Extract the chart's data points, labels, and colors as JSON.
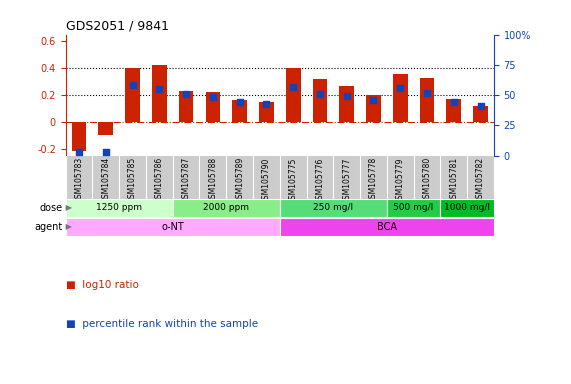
{
  "title": "GDS2051 / 9841",
  "samples": [
    "GSM105783",
    "GSM105784",
    "GSM105785",
    "GSM105786",
    "GSM105787",
    "GSM105788",
    "GSM105789",
    "GSM105790",
    "GSM105775",
    "GSM105776",
    "GSM105777",
    "GSM105778",
    "GSM105779",
    "GSM105780",
    "GSM105781",
    "GSM105782"
  ],
  "log10_ratio": [
    -0.22,
    -0.1,
    0.4,
    0.42,
    0.23,
    0.22,
    0.16,
    0.15,
    0.4,
    0.32,
    0.27,
    0.2,
    0.36,
    0.33,
    0.17,
    0.12
  ],
  "percentile_pct": [
    3,
    3,
    58,
    55,
    51,
    48,
    44,
    43,
    57,
    51,
    49,
    46,
    56,
    52,
    44,
    41
  ],
  "bar_color": "#cc2200",
  "dot_color": "#1144bb",
  "ylim_left": [
    -0.25,
    0.65
  ],
  "ylim_right": [
    0,
    100
  ],
  "yticks_left": [
    -0.2,
    0.0,
    0.2,
    0.4,
    0.6
  ],
  "ytick_labels_left": [
    "-0.2",
    "0",
    "0.2",
    "0.4",
    "0.6"
  ],
  "yticks_right": [
    0,
    25,
    50,
    75,
    100
  ],
  "ytick_labels_right": [
    "0",
    "25",
    "50",
    "75",
    "100%"
  ],
  "hlines": [
    0.4,
    0.2
  ],
  "dose_groups": [
    {
      "label": "1250 ppm",
      "start": 0,
      "end": 4,
      "color": "#ccffcc"
    },
    {
      "label": "2000 ppm",
      "start": 4,
      "end": 8,
      "color": "#88ee88"
    },
    {
      "label": "250 mg/l",
      "start": 8,
      "end": 12,
      "color": "#55dd77"
    },
    {
      "label": "500 mg/l",
      "start": 12,
      "end": 14,
      "color": "#22cc44"
    },
    {
      "label": "1000 mg/l",
      "start": 14,
      "end": 16,
      "color": "#00bb22"
    }
  ],
  "agent_groups": [
    {
      "label": "o-NT",
      "start": 0,
      "end": 8,
      "color": "#ffaaff"
    },
    {
      "label": "BCA",
      "start": 8,
      "end": 16,
      "color": "#ee44ee"
    }
  ],
  "bg": "#ffffff",
  "legend_bar_label": "log10 ratio",
  "legend_dot_label": "percentile rank within the sample"
}
